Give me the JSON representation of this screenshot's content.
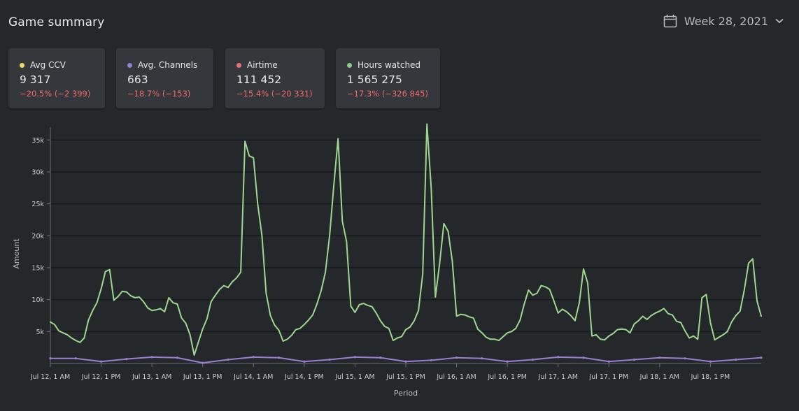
{
  "header": {
    "title": "Game summary",
    "week_label": "Week 28, 2021",
    "calendar_icon": "calendar-icon",
    "chevron_icon": "chevron-down-icon"
  },
  "cards": [
    {
      "label": "Avg CCV",
      "value": "9 317",
      "change": "−20.5% (−2 399)",
      "dot_color": "#f5d66b"
    },
    {
      "label": "Avg. Channels",
      "value": "663",
      "change": "−18.7% (−153)",
      "dot_color": "#8c82d0"
    },
    {
      "label": "Airtime",
      "value": "111 452",
      "change": "−15.4% (−20 331)",
      "dot_color": "#f07070"
    },
    {
      "label": "Hours watched",
      "value": "1 565 275",
      "change": "−17.3% (−326 845)",
      "dot_color": "#8ccf82"
    }
  ],
  "colors": {
    "background": "#25282b",
    "card": "#34373b",
    "negative": "#ef6b6b",
    "grid": "#15171a"
  },
  "chart_data": {
    "type": "line",
    "xlabel": "Period",
    "ylabel": "Amount",
    "ylim": [
      0,
      37000
    ],
    "yticks": [
      5000,
      10000,
      15000,
      20000,
      25000,
      30000,
      35000
    ],
    "ytick_labels": [
      "5k",
      "10k",
      "15k",
      "20k",
      "25k",
      "30k",
      "35k"
    ],
    "xlim": [
      0,
      167
    ],
    "xticks": [
      0,
      12,
      24,
      36,
      48,
      60,
      72,
      84,
      96,
      108,
      120,
      132,
      144,
      156
    ],
    "xtick_labels": [
      "Jul 12, 1 AM",
      "Jul 12, 1 PM",
      "Jul 13, 1 AM",
      "Jul 13, 1 PM",
      "Jul 14, 1 AM",
      "Jul 14, 1 PM",
      "Jul 15, 1 AM",
      "Jul 15, 1 PM",
      "Jul 16, 1 AM",
      "Jul 16, 1 PM",
      "Jul 17, 1 AM",
      "Jul 17, 1 PM",
      "Jul 18, 1 AM",
      "Jul 18, 1 PM"
    ],
    "series": [
      {
        "color": "#9fd68f",
        "points": [
          [
            0,
            6500
          ],
          [
            1,
            6100
          ],
          [
            2,
            5100
          ],
          [
            3,
            4800
          ],
          [
            4,
            4500
          ],
          [
            5,
            4000
          ],
          [
            6,
            3600
          ],
          [
            7,
            3300
          ],
          [
            8,
            4000
          ],
          [
            9,
            6800
          ],
          [
            10,
            8300
          ],
          [
            11,
            9500
          ],
          [
            12,
            11700
          ],
          [
            13,
            14400
          ],
          [
            14,
            14700
          ],
          [
            15,
            9900
          ],
          [
            16,
            10500
          ],
          [
            17,
            11300
          ],
          [
            18,
            11200
          ],
          [
            19,
            10600
          ],
          [
            20,
            10300
          ],
          [
            21,
            10400
          ],
          [
            22,
            9700
          ],
          [
            23,
            8700
          ],
          [
            24,
            8300
          ],
          [
            25,
            8400
          ],
          [
            26,
            8600
          ],
          [
            27,
            8100
          ],
          [
            28,
            10300
          ],
          [
            29,
            9500
          ],
          [
            30,
            9300
          ],
          [
            31,
            7100
          ],
          [
            32,
            6300
          ],
          [
            33,
            4500
          ],
          [
            34,
            1300
          ],
          [
            35,
            3400
          ],
          [
            36,
            5400
          ],
          [
            37,
            7000
          ],
          [
            38,
            9700
          ],
          [
            39,
            10700
          ],
          [
            40,
            11600
          ],
          [
            41,
            12200
          ],
          [
            42,
            11900
          ],
          [
            43,
            12800
          ],
          [
            44,
            13400
          ],
          [
            45,
            14300
          ],
          [
            46,
            34800
          ],
          [
            47,
            32500
          ],
          [
            48,
            32200
          ],
          [
            49,
            25000
          ],
          [
            50,
            20000
          ],
          [
            51,
            11000
          ],
          [
            52,
            7500
          ],
          [
            53,
            6000
          ],
          [
            54,
            5200
          ],
          [
            55,
            3500
          ],
          [
            56,
            3800
          ],
          [
            57,
            4400
          ],
          [
            58,
            5300
          ],
          [
            59,
            5500
          ],
          [
            60,
            6100
          ],
          [
            61,
            6800
          ],
          [
            62,
            7600
          ],
          [
            63,
            9300
          ],
          [
            64,
            11400
          ],
          [
            65,
            14300
          ],
          [
            66,
            20000
          ],
          [
            67,
            28000
          ],
          [
            68,
            35200
          ],
          [
            69,
            22300
          ],
          [
            70,
            19100
          ],
          [
            71,
            9000
          ],
          [
            72,
            8000
          ],
          [
            73,
            9200
          ],
          [
            74,
            9400
          ],
          [
            75,
            9100
          ],
          [
            76,
            8900
          ],
          [
            77,
            7900
          ],
          [
            78,
            6700
          ],
          [
            79,
            5800
          ],
          [
            80,
            5500
          ],
          [
            81,
            3600
          ],
          [
            82,
            4000
          ],
          [
            83,
            4200
          ],
          [
            84,
            5300
          ],
          [
            85,
            5700
          ],
          [
            86,
            6700
          ],
          [
            87,
            8300
          ],
          [
            88,
            14000
          ],
          [
            89,
            37500
          ],
          [
            90,
            27500
          ],
          [
            91,
            10400
          ],
          [
            92,
            15700
          ],
          [
            93,
            21900
          ],
          [
            94,
            20700
          ],
          [
            95,
            16000
          ],
          [
            96,
            7400
          ],
          [
            97,
            7700
          ],
          [
            98,
            7600
          ],
          [
            99,
            7300
          ],
          [
            100,
            7100
          ],
          [
            101,
            5400
          ],
          [
            102,
            4800
          ],
          [
            103,
            4100
          ],
          [
            104,
            3800
          ],
          [
            105,
            3800
          ],
          [
            106,
            3600
          ],
          [
            107,
            4200
          ],
          [
            108,
            4800
          ],
          [
            109,
            5000
          ],
          [
            110,
            5500
          ],
          [
            111,
            6800
          ],
          [
            112,
            9300
          ],
          [
            113,
            11500
          ],
          [
            114,
            10700
          ],
          [
            115,
            11000
          ],
          [
            116,
            12200
          ],
          [
            117,
            12000
          ],
          [
            118,
            11600
          ],
          [
            119,
            9800
          ],
          [
            120,
            7900
          ],
          [
            121,
            8500
          ],
          [
            122,
            8100
          ],
          [
            123,
            7500
          ],
          [
            124,
            6700
          ],
          [
            125,
            9500
          ],
          [
            126,
            14800
          ],
          [
            127,
            12600
          ],
          [
            128,
            4300
          ],
          [
            129,
            4500
          ],
          [
            130,
            3800
          ],
          [
            131,
            3700
          ],
          [
            132,
            4300
          ],
          [
            133,
            4700
          ],
          [
            134,
            5300
          ],
          [
            135,
            5400
          ],
          [
            136,
            5300
          ],
          [
            137,
            4800
          ],
          [
            138,
            6200
          ],
          [
            139,
            6700
          ],
          [
            140,
            7400
          ],
          [
            141,
            6900
          ],
          [
            142,
            7500
          ],
          [
            143,
            7900
          ],
          [
            144,
            8200
          ],
          [
            145,
            8600
          ],
          [
            146,
            7800
          ],
          [
            147,
            7600
          ],
          [
            148,
            6600
          ],
          [
            149,
            6400
          ],
          [
            150,
            5100
          ],
          [
            151,
            4000
          ],
          [
            152,
            4300
          ],
          [
            153,
            3800
          ],
          [
            154,
            10300
          ],
          [
            155,
            10800
          ],
          [
            156,
            6400
          ],
          [
            157,
            3700
          ],
          [
            158,
            4100
          ],
          [
            159,
            4500
          ],
          [
            160,
            5000
          ],
          [
            161,
            6500
          ],
          [
            162,
            7500
          ],
          [
            163,
            8200
          ],
          [
            164,
            11500
          ],
          [
            165,
            15700
          ],
          [
            166,
            16400
          ],
          [
            167,
            9800
          ],
          [
            168,
            7400
          ]
        ]
      },
      {
        "color": "#9b7fd0",
        "points": [
          [
            0,
            800
          ],
          [
            6,
            800
          ],
          [
            12,
            300
          ],
          [
            18,
            700
          ],
          [
            24,
            1000
          ],
          [
            30,
            900
          ],
          [
            36,
            100
          ],
          [
            42,
            600
          ],
          [
            48,
            1000
          ],
          [
            54,
            900
          ],
          [
            60,
            300
          ],
          [
            66,
            600
          ],
          [
            72,
            1000
          ],
          [
            78,
            900
          ],
          [
            84,
            300
          ],
          [
            90,
            500
          ],
          [
            96,
            900
          ],
          [
            102,
            800
          ],
          [
            108,
            300
          ],
          [
            114,
            600
          ],
          [
            120,
            1000
          ],
          [
            126,
            900
          ],
          [
            132,
            300
          ],
          [
            138,
            600
          ],
          [
            144,
            900
          ],
          [
            150,
            800
          ],
          [
            156,
            300
          ],
          [
            162,
            600
          ],
          [
            168,
            900
          ]
        ]
      }
    ]
  }
}
